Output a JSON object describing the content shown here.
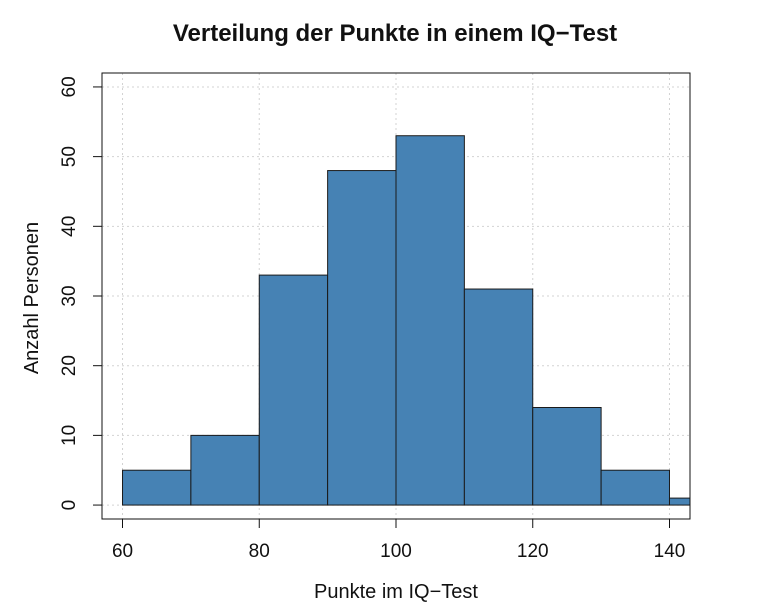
{
  "chart_data": {
    "type": "bar",
    "subtype": "histogram",
    "title": "Verteilung der Punkte in einem IQ−Test",
    "xlabel": "Punkte im IQ−Test",
    "ylabel": "Anzahl Personen",
    "bins": [
      {
        "from": 60,
        "to": 70,
        "count": 5
      },
      {
        "from": 70,
        "to": 80,
        "count": 10
      },
      {
        "from": 80,
        "to": 90,
        "count": 33
      },
      {
        "from": 90,
        "to": 100,
        "count": 48
      },
      {
        "from": 100,
        "to": 110,
        "count": 53
      },
      {
        "from": 110,
        "to": 120,
        "count": 31
      },
      {
        "from": 120,
        "to": 130,
        "count": 14
      },
      {
        "from": 130,
        "to": 140,
        "count": 5
      },
      {
        "from": 140,
        "to": 150,
        "count": 1
      }
    ],
    "xlim": [
      57,
      143
    ],
    "ylim": [
      -2,
      62
    ],
    "xticks": [
      "60",
      "80",
      "100",
      "120",
      "140"
    ],
    "yticks": [
      "0",
      "10",
      "20",
      "30",
      "40",
      "50",
      "60"
    ],
    "grid": true,
    "legend": false,
    "colors": {
      "bar_fill": "#4682B4",
      "bar_stroke": "#1a1a1a",
      "grid": "#d3d3d3",
      "axis": "#111111"
    }
  }
}
